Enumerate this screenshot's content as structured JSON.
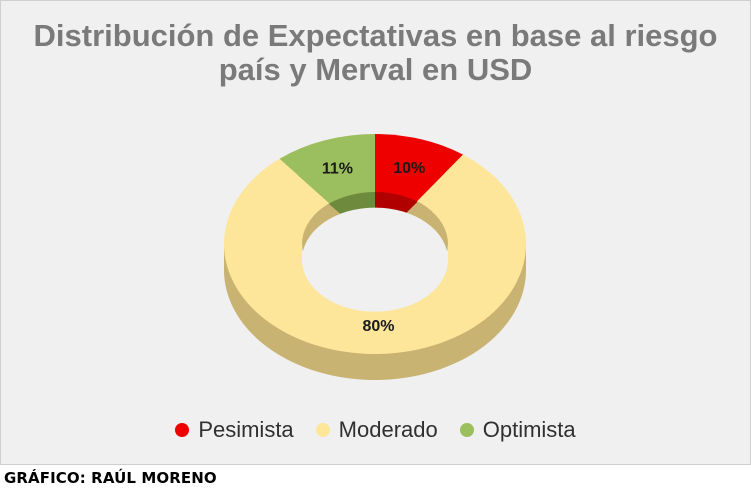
{
  "chart_data": {
    "type": "pie",
    "style": "3d-donut",
    "title_lines": [
      "Distribución de Expectativas en base al riesgo",
      "país y Merval en USD"
    ],
    "categories": [
      "Pesimista",
      "Moderado",
      "Optimista"
    ],
    "values": [
      10,
      80,
      11
    ],
    "labels": [
      "10%",
      "80%",
      "11%"
    ],
    "colors": [
      "#ee0000",
      "#fde59a",
      "#9bbf5e"
    ],
    "side_colors": [
      "#b00000",
      "#c9b373",
      "#6e8a3d"
    ],
    "legend_position": "bottom"
  },
  "credit": "GRÁFICO: RAÚL MORENO"
}
